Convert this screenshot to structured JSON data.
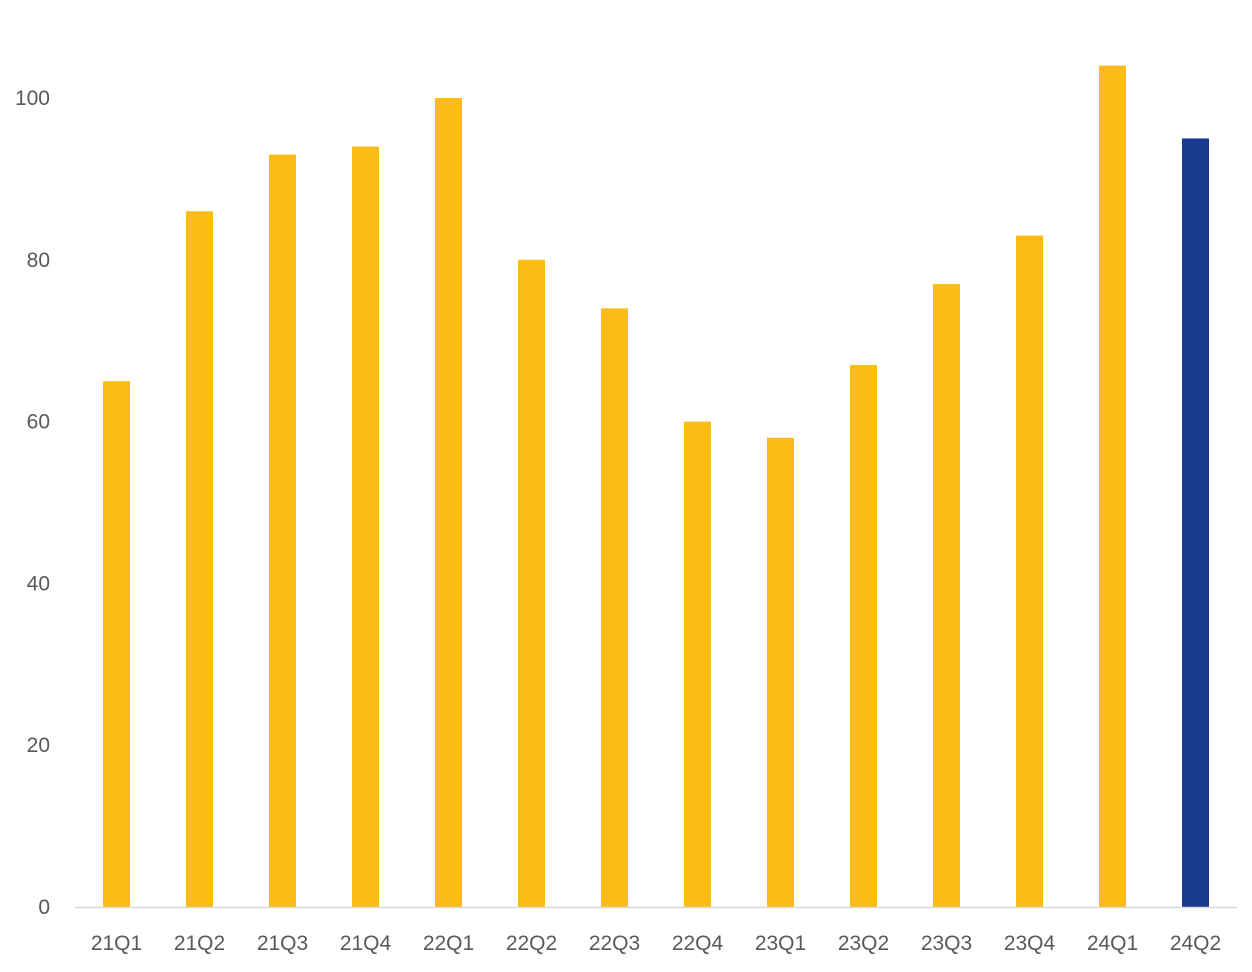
{
  "chart_data": {
    "type": "bar",
    "title": "",
    "xlabel": "",
    "ylabel": "",
    "categories": [
      "21Q1",
      "21Q2",
      "21Q3",
      "21Q4",
      "22Q1",
      "22Q2",
      "22Q3",
      "22Q4",
      "23Q1",
      "23Q2",
      "23Q3",
      "23Q4",
      "24Q1",
      "24Q2"
    ],
    "values": [
      65,
      86,
      93,
      94,
      100,
      80,
      74,
      60,
      58,
      67,
      77,
      83,
      104,
      95
    ],
    "highlight_index": 13,
    "ylim": [
      0,
      100
    ],
    "yticks": [
      0,
      20,
      40,
      60,
      80,
      100
    ],
    "grid": false,
    "legend": "none",
    "colors": {
      "bar": "#FBBC15",
      "highlight": "#173A8E",
      "axis": "#D9D9D9",
      "tick_text": "#595959"
    }
  }
}
